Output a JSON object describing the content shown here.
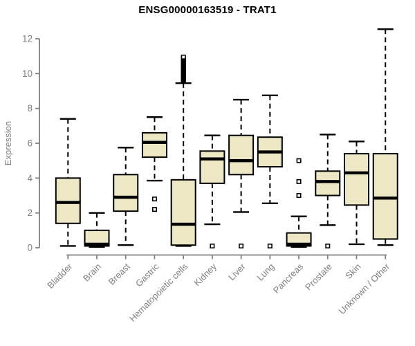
{
  "page": {
    "title": "ENSG00000163519 - TRAT1"
  },
  "chart_data": {
    "type": "box",
    "title": "ENSG00000163519 - TRAT1",
    "xlabel": "",
    "ylabel": "Expression",
    "ylim": [
      0,
      12
    ],
    "yticks": [
      0,
      2,
      4,
      6,
      8,
      10,
      12
    ],
    "grid": false,
    "legend": "none",
    "xlabel_rotation_deg": 45,
    "colors": {
      "box_fill": "#EDE7C5",
      "box_stroke": "#000000",
      "median": "#000000",
      "whisker": "#000000",
      "axis": "#808080",
      "tick_text": "#808080",
      "title_text": "#000000"
    },
    "categories": [
      "Bladder",
      "Brain",
      "Breast",
      "Gastric",
      "Hematopoietic cells",
      "Kidney",
      "Liver",
      "Lung",
      "Pancreas",
      "Prostate",
      "Skin",
      "Unknown / Other"
    ],
    "boxes": [
      {
        "name": "Bladder",
        "whisker_low": 0.1,
        "q1": 1.4,
        "median": 2.6,
        "q3": 4.0,
        "whisker_high": 7.4,
        "outliers": []
      },
      {
        "name": "Brain",
        "whisker_low": 0.05,
        "q1": 0.1,
        "median": 0.2,
        "q3": 1.0,
        "whisker_high": 2.0,
        "outliers": []
      },
      {
        "name": "Breast",
        "whisker_low": 0.15,
        "q1": 2.1,
        "median": 2.9,
        "q3": 4.2,
        "whisker_high": 5.75,
        "outliers": []
      },
      {
        "name": "Gastric",
        "whisker_low": 3.85,
        "q1": 5.2,
        "median": 6.05,
        "q3": 6.6,
        "whisker_high": 7.5,
        "outliers": [
          2.8,
          2.2
        ]
      },
      {
        "name": "Hematopoietic cells",
        "whisker_low": 0.1,
        "q1": 0.15,
        "median": 1.35,
        "q3": 3.9,
        "whisker_high": 9.45,
        "outliers": [
          9.6,
          9.65,
          9.7,
          9.75,
          9.8,
          9.85,
          9.9,
          9.95,
          10.0,
          10.05,
          10.1,
          10.15,
          10.2,
          10.25,
          10.3,
          10.35,
          10.4,
          10.45,
          10.5,
          10.55,
          10.6,
          10.65,
          10.7,
          10.75,
          10.8,
          10.85,
          10.9,
          10.95
        ]
      },
      {
        "name": "Kidney",
        "whisker_low": 1.35,
        "q1": 3.7,
        "median": 5.1,
        "q3": 5.55,
        "whisker_high": 6.45,
        "outliers": [
          0.1
        ]
      },
      {
        "name": "Liver",
        "whisker_low": 2.05,
        "q1": 4.2,
        "median": 5.0,
        "q3": 6.45,
        "whisker_high": 8.5,
        "outliers": [
          0.1
        ]
      },
      {
        "name": "Lung",
        "whisker_low": 2.55,
        "q1": 4.65,
        "median": 5.5,
        "q3": 6.35,
        "whisker_high": 8.75,
        "outliers": [
          0.1
        ]
      },
      {
        "name": "Pancreas",
        "whisker_low": 0.05,
        "q1": 0.1,
        "median": 0.2,
        "q3": 0.85,
        "whisker_high": 1.8,
        "outliers": [
          5.0,
          3.8,
          3.0
        ]
      },
      {
        "name": "Prostate",
        "whisker_low": 1.3,
        "q1": 3.0,
        "median": 3.8,
        "q3": 4.4,
        "whisker_high": 6.5,
        "outliers": [
          0.1
        ]
      },
      {
        "name": "Skin",
        "whisker_low": 0.2,
        "q1": 2.45,
        "median": 4.3,
        "q3": 5.4,
        "whisker_high": 6.1,
        "outliers": []
      },
      {
        "name": "Unknown / Other",
        "whisker_low": 0.15,
        "q1": 0.5,
        "median": 2.85,
        "q3": 5.4,
        "whisker_high": 12.55,
        "outliers": []
      }
    ]
  }
}
